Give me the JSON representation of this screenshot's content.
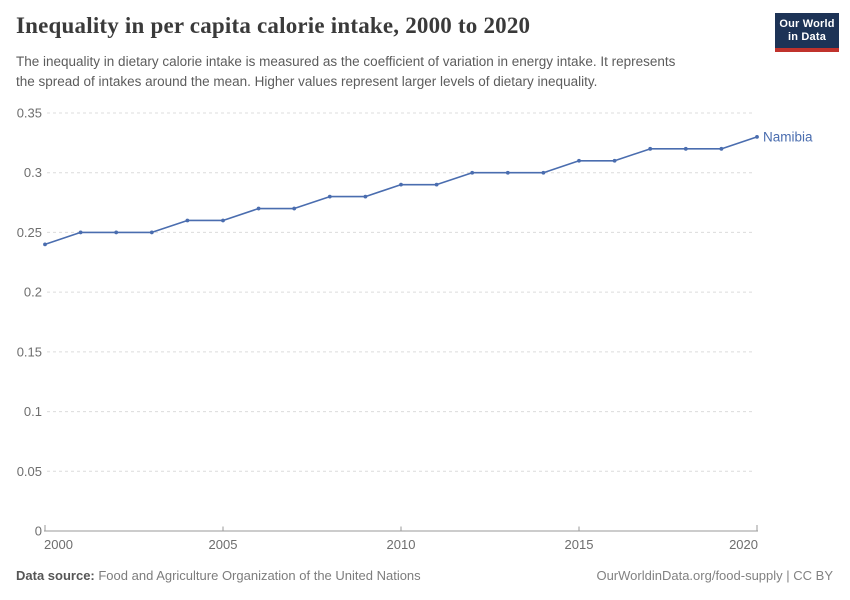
{
  "header": {
    "title": "Inequality in per capita calorie intake, 2000 to 2020",
    "subtitle_line1": "The inequality in dietary calorie intake is measured as the coefficient of variation in energy intake. It represents",
    "subtitle_line2": "the spread of intakes around the mean. Higher values represent larger levels of dietary inequality.",
    "logo": {
      "line1": "Our World",
      "line2": "in Data"
    }
  },
  "chart_data": {
    "type": "line",
    "title": "Inequality in per capita calorie intake, 2000 to 2020",
    "x": [
      2000,
      2001,
      2002,
      2003,
      2004,
      2005,
      2006,
      2007,
      2008,
      2009,
      2010,
      2011,
      2012,
      2013,
      2014,
      2015,
      2016,
      2017,
      2018,
      2019,
      2020
    ],
    "series": [
      {
        "name": "Namibia",
        "color": "#4a6daf",
        "values": [
          0.24,
          0.25,
          0.25,
          0.25,
          0.26,
          0.26,
          0.27,
          0.27,
          0.28,
          0.28,
          0.29,
          0.29,
          0.3,
          0.3,
          0.3,
          0.31,
          0.31,
          0.32,
          0.32,
          0.32,
          0.33
        ]
      }
    ],
    "xlabel": "",
    "ylabel": "",
    "xlim": [
      2000,
      2020
    ],
    "ylim": [
      0,
      0.35
    ],
    "x_ticks": [
      2000,
      2005,
      2010,
      2015,
      2020
    ],
    "x_tick_labels": [
      "2000",
      "2005",
      "2010",
      "2015",
      "2020"
    ],
    "y_ticks": [
      0,
      0.05,
      0.1,
      0.15,
      0.2,
      0.25,
      0.3,
      0.35
    ],
    "y_tick_labels": [
      "0",
      "0.05",
      "0.1",
      "0.15",
      "0.2",
      "0.25",
      "0.3",
      "0.35"
    ],
    "grid": "horizontal-dashed",
    "legend_position": "end-of-line-label",
    "colors": {
      "gridline": "#dcdcdc",
      "axis_line": "#9a9a9a",
      "tick_label": "#6e6e6e",
      "line": "#4a6daf",
      "entity_label": "#4a6daf"
    }
  },
  "footer": {
    "datasource_label": "Data source:",
    "datasource_value": " Food and Agriculture Organization of the United Nations",
    "link": "OurWorldinData.org/food-supply",
    "license": " | CC BY"
  }
}
